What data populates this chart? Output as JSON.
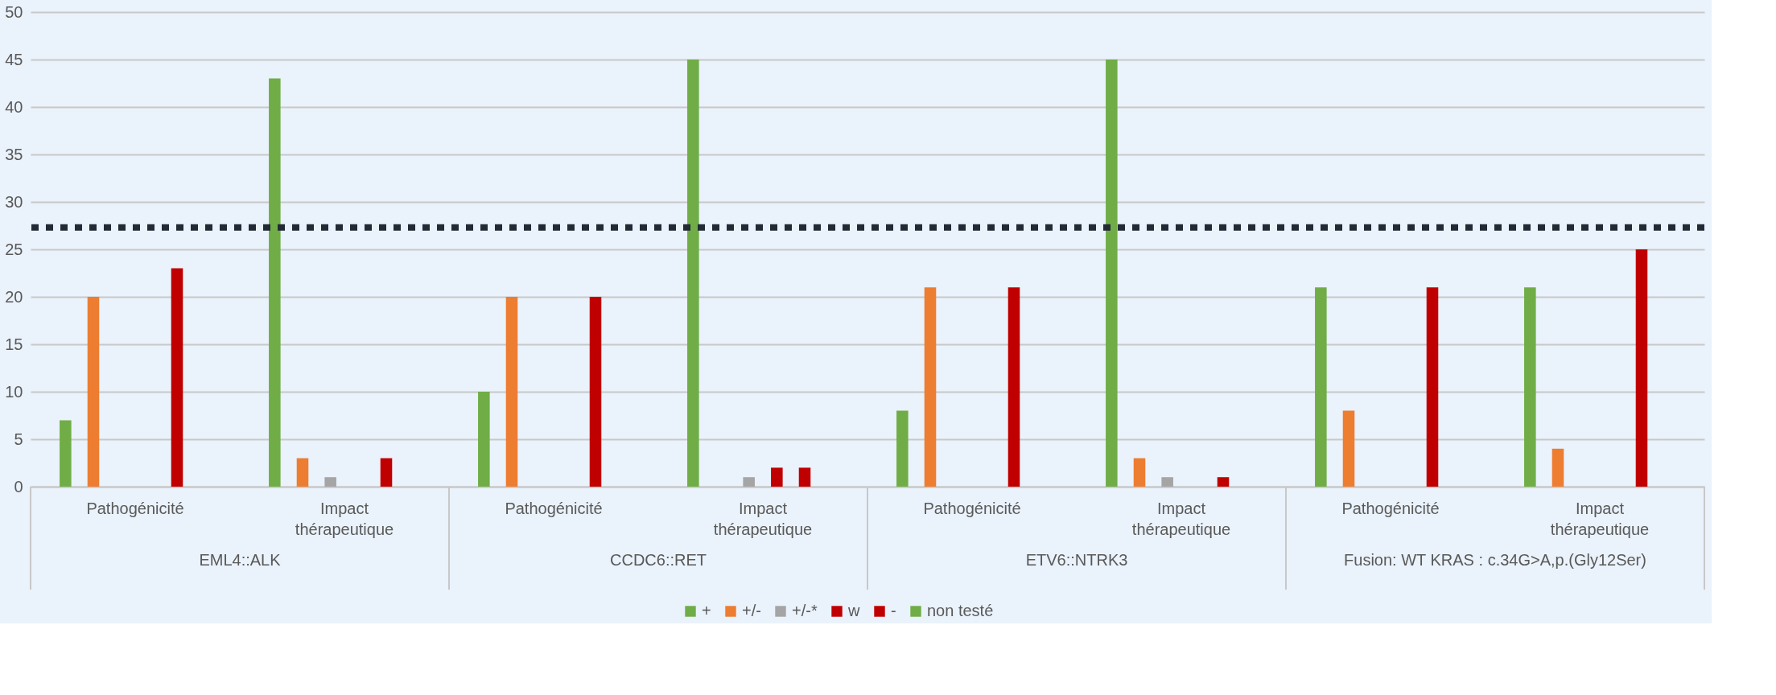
{
  "chart_data": {
    "type": "bar",
    "categories": [
      "Pathogénicité",
      "Impact thérapeutique",
      "Pathogénicité",
      "Impact thérapeutique",
      "Pathogénicité",
      "Impact thérapeutique",
      "Pathogénicité",
      "Impact thérapeutique"
    ],
    "series": [
      {
        "name": "+",
        "color": "#70ad47",
        "values": [
          7,
          43,
          10,
          45,
          8,
          45,
          21,
          21
        ]
      },
      {
        "name": "+/-",
        "color": "#ed7d31",
        "values": [
          20,
          3,
          20,
          0,
          21,
          3,
          8,
          4
        ]
      },
      {
        "name": "+/-*",
        "color": "#a5a5a5",
        "values": [
          0,
          1,
          0,
          1,
          0,
          1,
          0,
          0
        ]
      },
      {
        "name": "w",
        "color": "#c00000",
        "values": [
          0,
          0,
          0,
          2,
          0,
          0,
          0,
          0
        ]
      },
      {
        "name": "-",
        "color": "#c00000",
        "values": [
          23,
          3,
          20,
          2,
          21,
          1,
          21,
          25
        ]
      },
      {
        "name": "non testé",
        "color": "#70ad47",
        "values": [
          0,
          0,
          0,
          0,
          0,
          0,
          0,
          0
        ]
      }
    ],
    "annotations": [
      "EML4::ALK",
      "CCDC6::RET",
      "ETV6::NTRK3",
      "Fusion: WT KRAS : c.34G>A,p.(Gly12Ser)"
    ],
    "ref_lines": [
      {
        "axis": "y",
        "value": 27.3,
        "color": "#222a35",
        "line_style": "dotted"
      }
    ],
    "ylim": [
      0,
      50
    ],
    "yticks": [
      0,
      5,
      10,
      15,
      20,
      25,
      30,
      35,
      40,
      45,
      50
    ],
    "grid": "y",
    "legend": "bottom"
  }
}
